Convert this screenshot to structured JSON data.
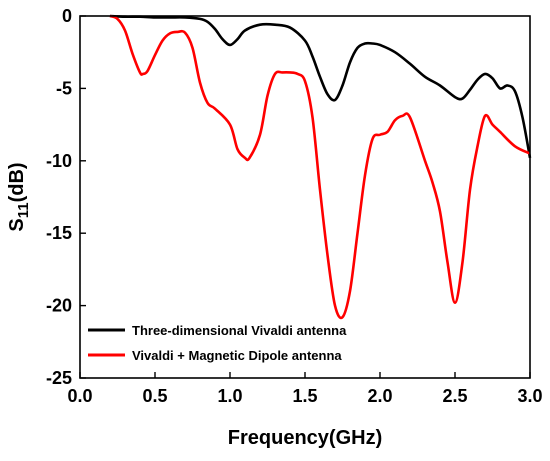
{
  "chart_data": {
    "type": "line",
    "title": "",
    "xlabel": "Frequency(GHz)",
    "ylabel_main": "S",
    "ylabel_sub": "11",
    "ylabel_suffix": "(dB)",
    "xlim": [
      0.0,
      3.0
    ],
    "ylim": [
      -25,
      0
    ],
    "xticks": [
      "0.0",
      "0.5",
      "1.0",
      "1.5",
      "2.0",
      "2.5",
      "3.0"
    ],
    "yticks": [
      "0",
      "-5",
      "-10",
      "-15",
      "-20",
      "-25"
    ],
    "grid": false,
    "legend_position": "bottom-left",
    "series": [
      {
        "name": "Three-dimensional Vivaldi antenna",
        "color": "#000000",
        "x": [
          0.2,
          0.3,
          0.4,
          0.5,
          0.6,
          0.7,
          0.8,
          0.85,
          0.9,
          0.95,
          1.0,
          1.05,
          1.1,
          1.2,
          1.3,
          1.4,
          1.5,
          1.55,
          1.6,
          1.65,
          1.7,
          1.75,
          1.8,
          1.85,
          1.9,
          1.95,
          2.0,
          2.1,
          2.2,
          2.3,
          2.4,
          2.5,
          2.55,
          2.6,
          2.65,
          2.7,
          2.75,
          2.8,
          2.85,
          2.9,
          2.95,
          3.0
        ],
        "y": [
          0,
          -0.05,
          -0.05,
          -0.1,
          -0.1,
          -0.1,
          -0.2,
          -0.4,
          -0.9,
          -1.6,
          -2.0,
          -1.6,
          -1.0,
          -0.6,
          -0.6,
          -0.8,
          -1.7,
          -2.8,
          -4.2,
          -5.4,
          -5.8,
          -4.8,
          -3.2,
          -2.2,
          -1.9,
          -1.9,
          -2.0,
          -2.5,
          -3.3,
          -4.2,
          -4.8,
          -5.6,
          -5.7,
          -5.1,
          -4.4,
          -4.0,
          -4.3,
          -5.0,
          -4.8,
          -5.2,
          -7.0,
          -9.8
        ]
      },
      {
        "name": "Vivaldi + Magnetic Dipole antenna",
        "color": "#ff0000",
        "x": [
          0.2,
          0.25,
          0.3,
          0.35,
          0.4,
          0.42,
          0.45,
          0.5,
          0.55,
          0.6,
          0.65,
          0.7,
          0.75,
          0.8,
          0.85,
          0.9,
          1.0,
          1.05,
          1.1,
          1.13,
          1.2,
          1.25,
          1.3,
          1.35,
          1.4,
          1.45,
          1.5,
          1.55,
          1.6,
          1.65,
          1.7,
          1.75,
          1.8,
          1.85,
          1.9,
          1.95,
          2.0,
          2.05,
          2.1,
          2.15,
          2.2,
          2.3,
          2.35,
          2.4,
          2.45,
          2.5,
          2.55,
          2.6,
          2.65,
          2.7,
          2.75,
          2.8,
          2.9,
          3.0
        ],
        "y": [
          0,
          -0.2,
          -1.0,
          -2.6,
          -3.9,
          -4.0,
          -3.8,
          -2.7,
          -1.7,
          -1.2,
          -1.1,
          -1.15,
          -2.2,
          -4.6,
          -6.0,
          -6.4,
          -7.5,
          -9.2,
          -9.8,
          -9.8,
          -8.2,
          -5.5,
          -4.0,
          -3.9,
          -3.9,
          -4.0,
          -4.5,
          -7.0,
          -12.0,
          -16.5,
          -20.0,
          -20.8,
          -19.0,
          -15.0,
          -11.0,
          -8.5,
          -8.2,
          -8.0,
          -7.2,
          -6.9,
          -7.0,
          -10.0,
          -11.5,
          -13.5,
          -17.0,
          -19.8,
          -17.0,
          -12.0,
          -9.0,
          -6.9,
          -7.5,
          -8.0,
          -9.0,
          -9.5
        ]
      }
    ]
  }
}
